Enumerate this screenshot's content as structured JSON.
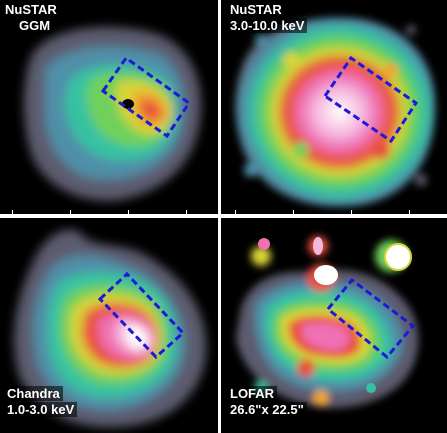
{
  "panels": [
    {
      "id": "tl",
      "line1": "NuSTAR",
      "line2": "GGM"
    },
    {
      "id": "tr",
      "line1": "NuSTAR",
      "line2": "3.0-10.0 keV"
    },
    {
      "id": "bl",
      "line1": "Chandra",
      "line2": "1.0-3.0 keV"
    },
    {
      "id": "br",
      "line1": "LOFAR",
      "line2": "26.6\"x 22.5\""
    }
  ],
  "colors": {
    "box": "#1a1ad8",
    "background": "#000000",
    "colormap": [
      "#5c5c6e",
      "#4f8fa8",
      "#36c2a2",
      "#6fd05a",
      "#d8d436",
      "#f0a52e",
      "#e8503c",
      "#f070b4",
      "#ffffff"
    ]
  }
}
